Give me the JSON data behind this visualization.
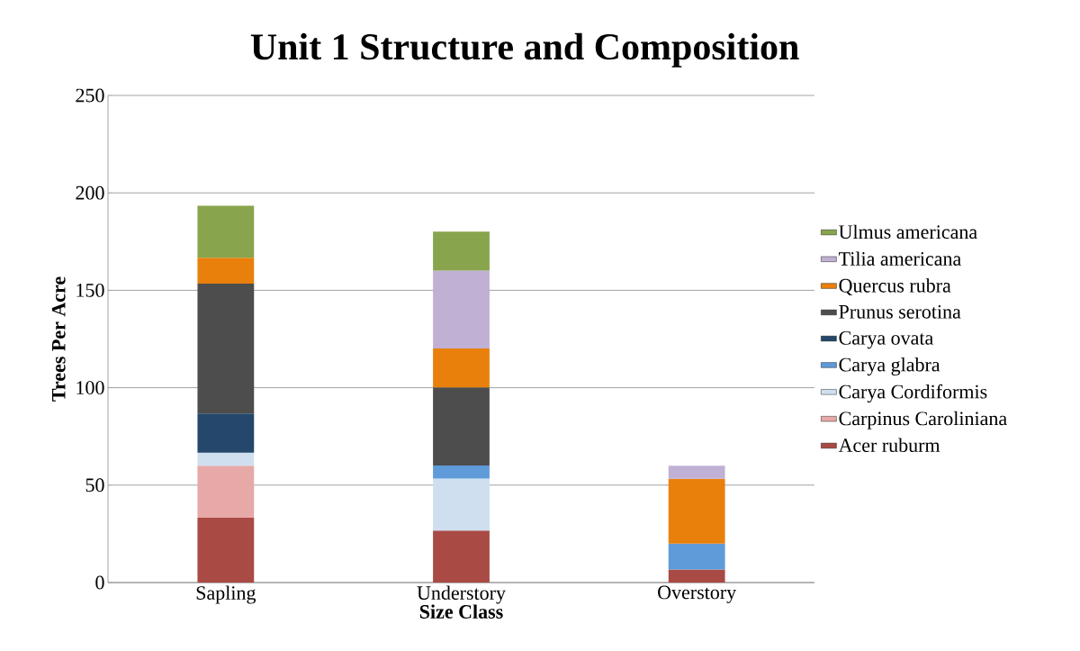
{
  "chart_data": {
    "type": "bar",
    "title": "Unit 1 Structure and Composition",
    "xlabel": "Size Class",
    "ylabel": "Trees Per Acre",
    "categories": [
      "Sapling",
      "Understory",
      "Overstory"
    ],
    "stacked": true,
    "ylim": [
      0,
      250
    ],
    "yticks": [
      0,
      50,
      100,
      150,
      200,
      250
    ],
    "grid": "y",
    "legend": "right",
    "series": [
      {
        "name": "Acer ruburm",
        "color": "#a94a44",
        "values": [
          33.3,
          26.7,
          6.7
        ]
      },
      {
        "name": "Carpinus Caroliniana",
        "color": "#e6a9a7",
        "values": [
          26.7,
          null,
          null
        ]
      },
      {
        "name": "Carya Cordiformis",
        "color": "#cfdff0",
        "values": [
          6.7,
          26.7,
          null
        ]
      },
      {
        "name": "Carya glabra",
        "color": "#5f9bd9",
        "values": [
          null,
          6.7,
          13.3
        ]
      },
      {
        "name": "Carya ovata",
        "color": "#24476b",
        "values": [
          20,
          null,
          null
        ]
      },
      {
        "name": "Prunus serotina",
        "color": "#4d4d4d",
        "values": [
          66.7,
          40,
          null
        ]
      },
      {
        "name": "Quercus rubra",
        "color": "#e9800c",
        "values": [
          13.3,
          20,
          33.3
        ]
      },
      {
        "name": "Tilia americana",
        "color": "#bfb0d4",
        "values": [
          null,
          40,
          6.7
        ]
      },
      {
        "name": "Ulmus americana",
        "color": "#88a44d",
        "values": [
          26.7,
          20,
          null
        ]
      }
    ]
  }
}
